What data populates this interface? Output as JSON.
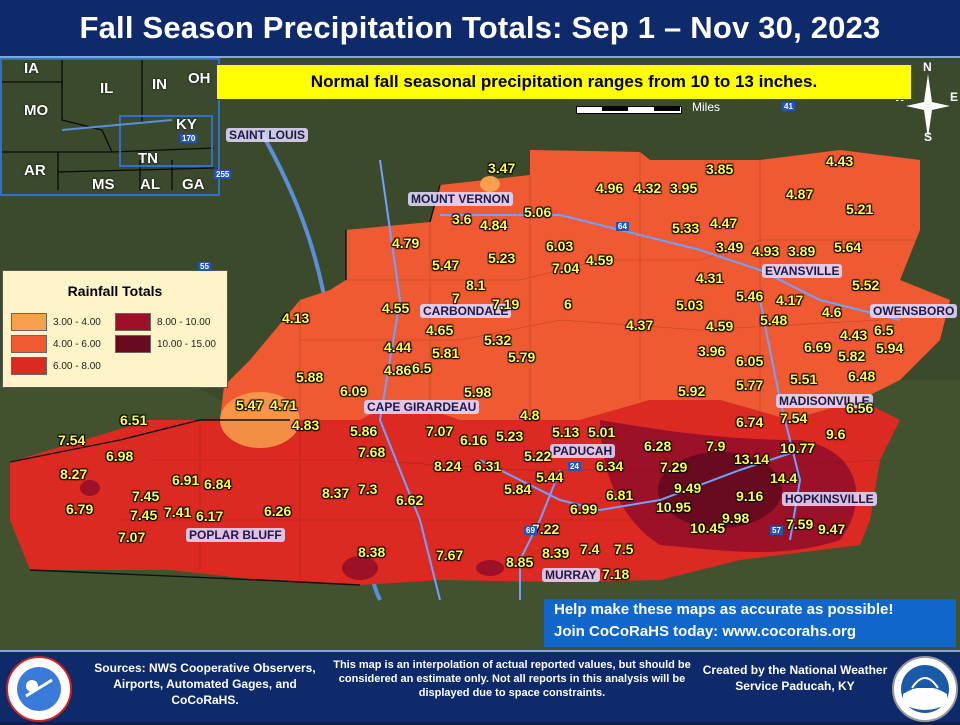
{
  "title": "Fall Season Precipitation Totals: Sep 1 – Nov 30, 2023",
  "note": "Normal fall seasonal precipitation ranges from 10 to 13 inches.",
  "scale_label": "Miles",
  "compass": {
    "n": "N",
    "s": "S",
    "e": "E",
    "w": "W"
  },
  "legend": {
    "title": "Rainfall Totals",
    "items": [
      {
        "label": "3.00 - 4.00",
        "color": "#f8a04c"
      },
      {
        "label": "4.00 - 6.00",
        "color": "#f05a32"
      },
      {
        "label": "6.00 - 8.00",
        "color": "#dc2a22"
      },
      {
        "label": "8.00 - 10.00",
        "color": "#9c1028"
      },
      {
        "label": "10.00 - 15.00",
        "color": "#6a0a1e"
      }
    ]
  },
  "inset_states": [
    "IA",
    "IL",
    "IN",
    "OH",
    "MO",
    "KY",
    "AR",
    "TN",
    "MS",
    "AL",
    "GA"
  ],
  "cities": [
    "MOUNT VERNON",
    "CARBONDALE",
    "CAPE GIRARDEAU",
    "POPLAR BLUFF",
    "PADUCAH",
    "MURRAY",
    "EVANSVILLE",
    "OWENSBORO",
    "MADISONVILLE",
    "HOPKINSVILLE",
    "SAINT LOUIS"
  ],
  "observations": [
    "3.47",
    "3.6",
    "4.84",
    "5.06",
    "4.96",
    "4.32",
    "3.95",
    "3.85",
    "4.43",
    "4.87",
    "5.21",
    "4.79",
    "6.03",
    "7.04",
    "4.59",
    "5.33",
    "4.47",
    "3.49",
    "4.93",
    "3.89",
    "5.64",
    "5.47",
    "5.23",
    "8.1",
    "7",
    "7.19",
    "6",
    "4.31",
    "5.46",
    "4.17",
    "5.52",
    "4.55",
    "4.65",
    "5.32",
    "5.03",
    "5.48",
    "4.6",
    "4.13",
    "4.44",
    "6.5",
    "5.81",
    "5.79",
    "4.37",
    "4.59",
    "3.96",
    "6.05",
    "6.69",
    "4.43",
    "6.5",
    "4.86",
    "5.82",
    "5.94",
    "5.88",
    "6.09",
    "5.98",
    "5.92",
    "5.77",
    "5.51",
    "6.48",
    "5.47",
    "4.71",
    "4.83",
    "4.8",
    "6.74",
    "7.54",
    "6.56",
    "6.51",
    "7.07",
    "6.16",
    "5.23",
    "5.13",
    "5.01",
    "6.28",
    "7.9",
    "10.77",
    "9.6",
    "7.54",
    "6.98",
    "5.86",
    "7.68",
    "6.31",
    "5.22",
    "6.34",
    "7.29",
    "13.14",
    "8.27",
    "8.24",
    "5.44",
    "14.4",
    "6.91",
    "6.84",
    "7.45",
    "8.37",
    "7.3",
    "6.62",
    "5.84",
    "6.81",
    "9.49",
    "9.16",
    "6.79",
    "7.45",
    "7.41",
    "6.17",
    "6.26",
    "6.99",
    "10.95",
    "9.98",
    "10.45",
    "7.59",
    "9.47",
    "7.07",
    "8.38",
    "7.67",
    "7.22",
    "8.85",
    "8.39",
    "7.4",
    "7.5",
    "7.18"
  ],
  "cta": {
    "line1": "Help make these maps as accurate as possible!",
    "line2": "Join CoCoRaHS today: www.cocorahs.org"
  },
  "footer": {
    "sources": "Sources: NWS Cooperative Observers, Airports, Automated Gages, and CoCoRaHS.",
    "disclaimer": "This map is an interpolation of actual reported values, but should be considered an estimate only. Not all reports in this analysis will be displayed due to space constraints.",
    "created": "Created by the National Weather Service Paducah, KY"
  },
  "highways": [
    "55",
    "64",
    "24",
    "69",
    "57",
    "41",
    "170",
    "255"
  ],
  "seal_lettering": [
    "NATIONAL WEATHER SERVICE",
    "NOAA"
  ]
}
